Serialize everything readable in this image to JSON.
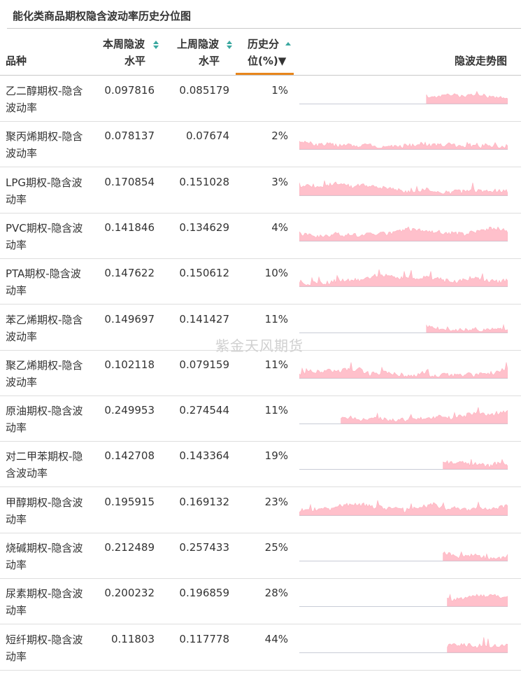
{
  "title": "能化类商品期权隐含波动率历史分位图",
  "watermark": "紫金天风期货",
  "columns": {
    "name": "品种",
    "current_l1": "本周隐波",
    "current_l2": "水平",
    "previous_l1": "上周隐波",
    "previous_l2": "水平",
    "percentile_l1": "历史分",
    "percentile_l2": "位(%)▼",
    "spark": "隐波走势图"
  },
  "colors": {
    "spark_fill": "#ffc0cb",
    "spark_line": "#ffb0bd",
    "accent": "#e8861c",
    "sort": "#3aa8a0"
  },
  "chart_data": {
    "type": "table",
    "title": "能化类商品期权隐含波动率历史分位图",
    "columns": [
      "品种",
      "本周隐波水平",
      "上周隐波水平",
      "历史分位(%)",
      "隐波走势图"
    ],
    "rows": [
      {
        "name": "乙二醇期权-隐含波动率",
        "current": "0.097816",
        "previous": "0.085179",
        "percentile": "1%",
        "spark_start": 0.61,
        "spark_seed": 11,
        "spark_level": 0.45,
        "spark_vol": 0.35
      },
      {
        "name": "聚丙烯期权-隐含波动率",
        "current": "0.078137",
        "previous": "0.07674",
        "percentile": "2%",
        "spark_start": 0.0,
        "spark_seed": 23,
        "spark_level": 0.4,
        "spark_vol": 0.55
      },
      {
        "name": "LPG期权-隐含波动率",
        "current": "0.170854",
        "previous": "0.151028",
        "percentile": "3%",
        "spark_start": 0.0,
        "spark_seed": 37,
        "spark_level": 0.35,
        "spark_vol": 0.45
      },
      {
        "name": "PVC期权-隐含波动率",
        "current": "0.141846",
        "previous": "0.134629",
        "percentile": "4%",
        "spark_start": 0.0,
        "spark_seed": 41,
        "spark_level": 0.38,
        "spark_vol": 0.5
      },
      {
        "name": "PTA期权-隐含波动率",
        "current": "0.147622",
        "previous": "0.150612",
        "percentile": "10%",
        "spark_start": 0.0,
        "spark_seed": 53,
        "spark_level": 0.32,
        "spark_vol": 0.5
      },
      {
        "name": "苯乙烯期权-隐含波动率",
        "current": "0.149697",
        "previous": "0.141427",
        "percentile": "11%",
        "spark_start": 0.61,
        "spark_seed": 67,
        "spark_level": 0.35,
        "spark_vol": 0.4
      },
      {
        "name": "聚乙烯期权-隐含波动率",
        "current": "0.102118",
        "previous": "0.079159",
        "percentile": "11%",
        "spark_start": 0.0,
        "spark_seed": 71,
        "spark_level": 0.42,
        "spark_vol": 0.55
      },
      {
        "name": "原油期权-隐含波动率",
        "current": "0.249953",
        "previous": "0.274544",
        "percentile": "11%",
        "spark_start": 0.2,
        "spark_seed": 83,
        "spark_level": 0.4,
        "spark_vol": 0.45
      },
      {
        "name": "对二甲苯期权-隐含波动率",
        "current": "0.142708",
        "previous": "0.143364",
        "percentile": "19%",
        "spark_start": 0.69,
        "spark_seed": 97,
        "spark_level": 0.4,
        "spark_vol": 0.5
      },
      {
        "name": "甲醇期权-隐含波动率",
        "current": "0.195915",
        "previous": "0.169132",
        "percentile": "23%",
        "spark_start": 0.0,
        "spark_seed": 101,
        "spark_level": 0.3,
        "spark_vol": 0.5
      },
      {
        "name": "烧碱期权-隐含波动率",
        "current": "0.212489",
        "previous": "0.257433",
        "percentile": "25%",
        "spark_start": 0.69,
        "spark_seed": 113,
        "spark_level": 0.5,
        "spark_vol": 0.45
      },
      {
        "name": "尿素期权-隐含波动率",
        "current": "0.200232",
        "previous": "0.196859",
        "percentile": "28%",
        "spark_start": 0.71,
        "spark_seed": 127,
        "spark_level": 0.45,
        "spark_vol": 0.35
      },
      {
        "name": "短纤期权-隐含波动率",
        "current": "0.11803",
        "previous": "0.117778",
        "percentile": "44%",
        "spark_start": 0.71,
        "spark_seed": 131,
        "spark_level": 0.38,
        "spark_vol": 0.45
      }
    ]
  }
}
